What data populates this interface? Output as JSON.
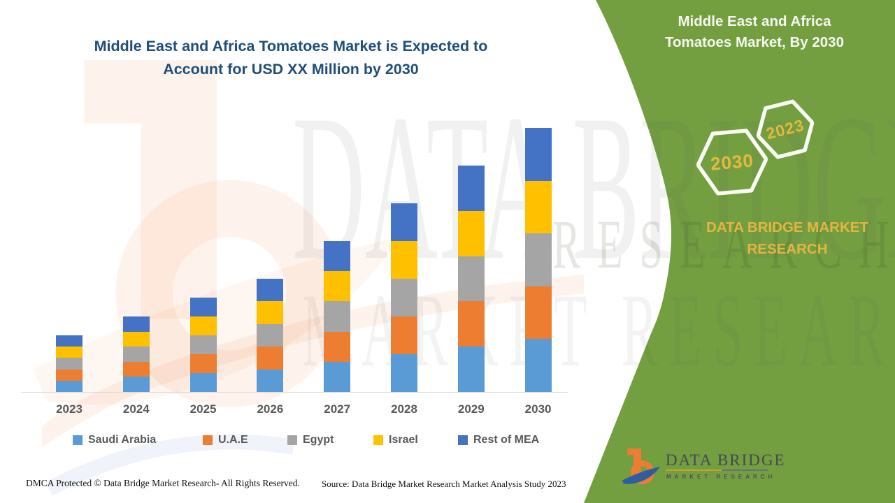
{
  "header": {
    "title_line1": "Middle East and Africa Tomatoes Market is Expected to",
    "title_line2": "Account for USD XX Million by 2030"
  },
  "side_panel": {
    "title_line1": "Middle East and Africa",
    "title_line2": "Tomatoes Market, By 2030",
    "hexagon_large_label": "2030",
    "hexagon_small_label": "2023",
    "brand_line1": "DATA BRIDGE MARKET",
    "brand_line2": "RESEARCH"
  },
  "logo": {
    "name": "DATA BRIDGE",
    "tagline": "MARKET RESEARCH"
  },
  "watermark": {
    "row1": "DATA BRIDGE",
    "row2": "MARKET RESEARCH",
    "row3": "RESEARCH"
  },
  "footer": {
    "left": "DMCA Protected © Data Bridge Market Research- All Rights Reserved.",
    "right": "Source: Data Bridge Market Research Market Analysis Study 2023"
  },
  "colors": {
    "panel_green": "#739F41",
    "title_navy": "#1F4E79",
    "gold_text": "#E5B93F",
    "axis_gray": "#D9D9D9",
    "label_gray": "#595959"
  },
  "chart_data": {
    "type": "bar",
    "stacked": true,
    "title": "Middle East and Africa Tomatoes Market is Expected to Account for USD XX Million by 2030",
    "categories": [
      "2023",
      "2024",
      "2025",
      "2026",
      "2027",
      "2028",
      "2029",
      "2030"
    ],
    "series": [
      {
        "name": "Saudi Arabia",
        "color": "#5B9BD5",
        "values": [
          0.6,
          0.8,
          1.0,
          1.2,
          1.6,
          2.0,
          2.4,
          2.8
        ]
      },
      {
        "name": "U.A.E",
        "color": "#ED7D31",
        "values": [
          0.6,
          0.8,
          1.0,
          1.2,
          1.6,
          2.0,
          2.4,
          2.8
        ]
      },
      {
        "name": "Egypt",
        "color": "#A5A5A5",
        "values": [
          0.6,
          0.8,
          1.0,
          1.2,
          1.6,
          2.0,
          2.4,
          2.8
        ]
      },
      {
        "name": "Israel",
        "color": "#FFC000",
        "values": [
          0.6,
          0.8,
          1.0,
          1.2,
          1.6,
          2.0,
          2.4,
          2.8
        ]
      },
      {
        "name": "Rest of MEA",
        "color": "#4472C4",
        "values": [
          0.6,
          0.8,
          1.0,
          1.2,
          1.6,
          2.0,
          2.4,
          2.8
        ]
      }
    ],
    "totals": [
      3,
      4,
      5,
      6,
      8,
      10,
      12,
      14
    ],
    "xlabel": "",
    "ylabel": "",
    "units": "USD XX Million (value axis not labeled in figure)",
    "ylim": [
      0,
      14.5
    ],
    "grid": false,
    "value_axis_visible": false,
    "legend_position": "bottom"
  }
}
